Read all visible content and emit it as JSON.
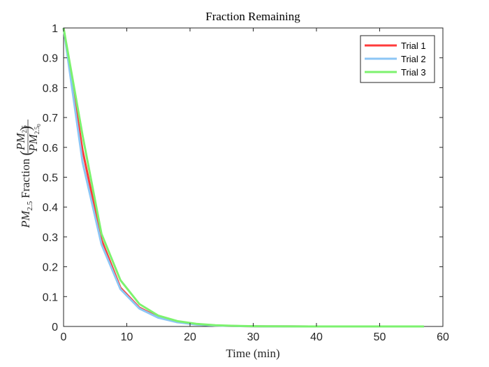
{
  "chart_data": {
    "type": "line",
    "title": "Fraction Remaining",
    "xlabel": "Time (min)",
    "ylabel": {
      "prefix": "PM",
      "prefix_sub": "2.5",
      "word": " Fraction ",
      "num": "PM",
      "num_sub": "2.5",
      "den": "PM",
      "den_sub": "2.5",
      "den_subsub": "0"
    },
    "xlim": [
      0,
      60
    ],
    "ylim": [
      0,
      1
    ],
    "xticks": [
      "0",
      "10",
      "20",
      "30",
      "40",
      "50",
      "60"
    ],
    "yticks": [
      "0",
      "0.1",
      "0.2",
      "0.3",
      "0.4",
      "0.5",
      "0.6",
      "0.7",
      "0.8",
      "0.9",
      "1"
    ],
    "xtick_values": [
      0,
      10,
      20,
      30,
      40,
      50,
      60
    ],
    "ytick_values": [
      0,
      0.1,
      0.2,
      0.3,
      0.4,
      0.5,
      0.6,
      0.7,
      0.8,
      0.9,
      1
    ],
    "grid": false,
    "legend_position": "top-right",
    "x": [
      0,
      3,
      6,
      9,
      12,
      15,
      18,
      21,
      24,
      27,
      30,
      33,
      36,
      39,
      42,
      45,
      48,
      51,
      54,
      57
    ],
    "series": [
      {
        "name": "Trial 1",
        "color": "#ff3b3b",
        "values": [
          1,
          0.59,
          0.29,
          0.13,
          0.063,
          0.031,
          0.015,
          0.007,
          0.003,
          0.0015,
          0.0007,
          0.0003,
          0.0002,
          0.0001,
          0,
          0,
          0,
          0,
          0,
          0
        ]
      },
      {
        "name": "Trial 2",
        "color": "#8cc6f5",
        "values": [
          1,
          0.55,
          0.275,
          0.125,
          0.06,
          0.029,
          0.014,
          0.0065,
          0.003,
          0.0014,
          0.0007,
          0.0003,
          0.0002,
          0.0001,
          0,
          0,
          0,
          0,
          0,
          0
        ]
      },
      {
        "name": "Trial 3",
        "color": "#7cf26e",
        "values": [
          1,
          0.64,
          0.31,
          0.155,
          0.075,
          0.036,
          0.018,
          0.009,
          0.004,
          0.002,
          0.001,
          0.0005,
          0.0002,
          0.0001,
          0,
          0,
          0,
          0,
          0,
          0
        ]
      }
    ]
  }
}
